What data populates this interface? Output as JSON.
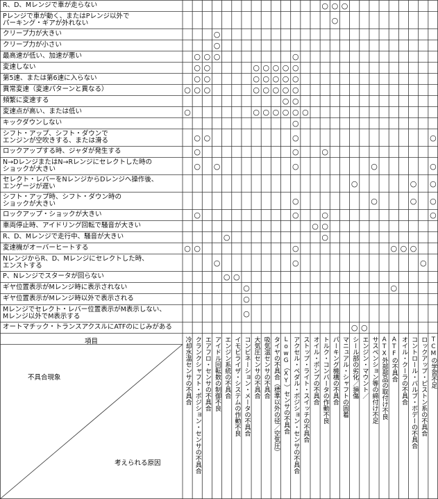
{
  "header": {
    "item": "項目",
    "symptom": "不具合現象",
    "cause": "考えられる原因",
    "columns": [
      "冷却水温センサの不具合",
      "クランクシャフト・ポジション・センサの不具合",
      "エアフロ・センサの不具合",
      "アイドル回転数の制御不良",
      "エンジン系統の不具合",
      "イモビライザ・システムの作動不良",
      "コンビネーション・メータの不具合",
      "大気圧センサの不具合",
      "吸気温センサの不具合",
      "タイヤの不具合（標準以外の径／空気圧）",
      "LowG（XY）センサの不具合",
      "アクセル・ペダル・ポジション・センサの不具合",
      "ストップ・ライト・スイッチの不具合",
      "オイル・ポンプの不具合",
      "トルク・コンバータの作動不良",
      "パーキング機構の不具合",
      "マニュアル・シャフトの固着",
      "シール部の劣化／損傷",
      "エンジン・マウント／",
      "サスペンション等の締付け不足",
      "ATX外部部品の取付け不良",
      "ATFの不具合",
      "オイル・クーラの不具合",
      "コントロール・バルブ・ボデーの不具合",
      "ロックアップ・ピストン系の不具合",
      "TCMの学習不足"
    ]
  },
  "rows": [
    {
      "symptom": "R、D、Mレンジで車が走らない",
      "cells": [
        null,
        null,
        null,
        null,
        null,
        null,
        null,
        null,
        null,
        null,
        null,
        null,
        null,
        null,
        "○",
        "○",
        "○",
        null,
        null,
        null,
        null,
        null,
        null,
        null,
        null,
        null
      ]
    },
    {
      "symptom": "Pレンジで車が動く、またはPレンジ以外で\nパーキング・ギアが外れない",
      "cells": [
        null,
        null,
        null,
        null,
        null,
        null,
        null,
        null,
        null,
        null,
        null,
        null,
        null,
        null,
        null,
        "○",
        null,
        null,
        null,
        null,
        null,
        null,
        null,
        null,
        null,
        null
      ]
    },
    {
      "symptom": "クリープ力が大きい",
      "cells": [
        null,
        null,
        null,
        "○",
        null,
        null,
        null,
        null,
        null,
        null,
        null,
        null,
        null,
        null,
        null,
        null,
        null,
        null,
        null,
        null,
        null,
        null,
        null,
        null,
        null,
        null
      ]
    },
    {
      "symptom": "クリープ力が小さい",
      "cells": [
        null,
        null,
        null,
        "○",
        null,
        null,
        null,
        null,
        null,
        null,
        null,
        null,
        null,
        null,
        null,
        null,
        null,
        null,
        null,
        null,
        null,
        null,
        null,
        null,
        null,
        null
      ]
    },
    {
      "symptom": "最高速が低い、加速が悪い",
      "cells": [
        null,
        "○",
        "○",
        "○",
        null,
        null,
        null,
        null,
        null,
        null,
        null,
        "○",
        null,
        null,
        null,
        null,
        null,
        null,
        null,
        null,
        null,
        null,
        null,
        null,
        null,
        null
      ]
    },
    {
      "symptom": "変速しない",
      "cells": [
        null,
        "○",
        "○",
        null,
        null,
        null,
        null,
        "○",
        "○",
        "○",
        "○",
        "○",
        null,
        null,
        null,
        null,
        null,
        null,
        null,
        null,
        null,
        null,
        null,
        null,
        null,
        null
      ]
    },
    {
      "symptom": "第5速、または第6速に入らない",
      "cells": [
        null,
        "○",
        "○",
        null,
        null,
        null,
        null,
        "○",
        "○",
        "○",
        "○",
        "○",
        null,
        null,
        null,
        null,
        null,
        null,
        null,
        null,
        null,
        null,
        null,
        null,
        null,
        null
      ]
    },
    {
      "symptom": "異常変速（変速パターンと異なる）",
      "cells": [
        "○",
        "○",
        "○",
        null,
        null,
        null,
        null,
        "○",
        "○",
        "○",
        "○",
        "○",
        null,
        null,
        null,
        null,
        null,
        null,
        null,
        null,
        null,
        null,
        null,
        null,
        null,
        null
      ]
    },
    {
      "symptom": "頻繁に変速する",
      "cells": [
        null,
        null,
        null,
        null,
        null,
        null,
        null,
        null,
        null,
        null,
        "○",
        "○",
        null,
        null,
        null,
        null,
        null,
        null,
        null,
        null,
        null,
        null,
        null,
        null,
        null,
        null
      ]
    },
    {
      "symptom": "変速点が高い、または低い",
      "cells": [
        "○",
        null,
        null,
        null,
        null,
        null,
        null,
        "○",
        "○",
        "○",
        "○",
        "○",
        "○",
        null,
        null,
        null,
        null,
        null,
        null,
        null,
        null,
        null,
        null,
        null,
        null,
        null
      ]
    },
    {
      "symptom": "キックダウンしない",
      "cells": [
        null,
        null,
        null,
        null,
        null,
        null,
        null,
        null,
        null,
        null,
        null,
        "○",
        null,
        null,
        null,
        null,
        null,
        null,
        null,
        null,
        null,
        null,
        null,
        null,
        null,
        null
      ]
    },
    {
      "symptom": "シフト・アップ、シフト・ダウンで\nエンジンが空吹きする、または滑る",
      "cells": [
        null,
        "○",
        "○",
        null,
        null,
        null,
        null,
        null,
        null,
        null,
        null,
        "○",
        null,
        null,
        null,
        null,
        null,
        null,
        null,
        null,
        null,
        null,
        null,
        null,
        null,
        "○"
      ]
    },
    {
      "symptom": "ロックアップする時、ジャダが発生する",
      "cells": [
        null,
        "○",
        null,
        null,
        null,
        null,
        null,
        null,
        null,
        null,
        null,
        "○",
        null,
        null,
        "○",
        null,
        null,
        null,
        null,
        null,
        null,
        null,
        null,
        null,
        null,
        null
      ]
    },
    {
      "symptom": "N→DレンジまたはN→Rレンジにセレクトした時の\nショックが大きい",
      "cells": [
        null,
        "○",
        null,
        "○",
        null,
        null,
        null,
        null,
        null,
        null,
        null,
        "○",
        null,
        null,
        null,
        null,
        null,
        null,
        null,
        "○",
        null,
        null,
        null,
        null,
        null,
        "○"
      ]
    },
    {
      "symptom": "セレクト・レバーをNレンジからDレンジへ操作後、\nエンゲージが遅い",
      "cells": [
        null,
        null,
        null,
        null,
        null,
        null,
        null,
        null,
        null,
        null,
        null,
        null,
        null,
        null,
        null,
        null,
        null,
        "○",
        null,
        null,
        null,
        null,
        null,
        "○",
        null,
        "○"
      ]
    },
    {
      "symptom": "シフト・アップ時、シフト・ダウン時の\nショックが大きい",
      "cells": [
        null,
        null,
        null,
        null,
        null,
        null,
        null,
        null,
        null,
        null,
        null,
        "○",
        null,
        null,
        null,
        null,
        null,
        null,
        null,
        "○",
        null,
        null,
        null,
        "○",
        null,
        "○"
      ]
    },
    {
      "symptom": "ロックアップ・ショックが大きい",
      "cells": [
        null,
        "○",
        null,
        null,
        null,
        null,
        null,
        null,
        null,
        null,
        null,
        "○",
        null,
        null,
        "○",
        null,
        null,
        null,
        null,
        null,
        null,
        null,
        null,
        null,
        null,
        "○"
      ]
    },
    {
      "symptom": "車両停止時、アイドリング回転で騒音が大きい",
      "cells": [
        null,
        null,
        null,
        null,
        null,
        null,
        null,
        null,
        null,
        null,
        null,
        null,
        null,
        "○",
        "○",
        null,
        null,
        null,
        null,
        null,
        null,
        null,
        null,
        null,
        null,
        null
      ]
    },
    {
      "symptom": "R、D、Mレンジで走行中、騒音が大きい",
      "cells": [
        null,
        null,
        null,
        null,
        "○",
        null,
        null,
        null,
        null,
        null,
        null,
        null,
        null,
        null,
        "○",
        null,
        null,
        null,
        null,
        null,
        null,
        null,
        null,
        null,
        null,
        null
      ]
    },
    {
      "symptom": "変速機がオーバーヒートする",
      "cells": [
        "○",
        "○",
        null,
        null,
        null,
        null,
        null,
        null,
        null,
        null,
        null,
        "○",
        null,
        null,
        null,
        null,
        null,
        null,
        null,
        null,
        null,
        "○",
        "○",
        "○",
        null,
        null
      ]
    },
    {
      "symptom": "NレンジからR、D、Mレンジにセレクトした時、\nエンストする",
      "cells": [
        null,
        null,
        null,
        "○",
        null,
        null,
        null,
        null,
        null,
        null,
        null,
        "○",
        null,
        null,
        null,
        null,
        null,
        null,
        null,
        null,
        null,
        null,
        null,
        null,
        "○",
        null
      ]
    },
    {
      "symptom": "P、Nレンジでスタータが回らない",
      "cells": [
        null,
        null,
        null,
        null,
        "○",
        "○",
        null,
        null,
        null,
        null,
        null,
        null,
        null,
        null,
        null,
        null,
        null,
        null,
        null,
        null,
        null,
        null,
        null,
        null,
        null,
        null
      ]
    },
    {
      "symptom": "ギヤ位置表示がMレンジ時に表示されない",
      "cells": [
        null,
        null,
        null,
        null,
        null,
        null,
        "○",
        null,
        null,
        null,
        null,
        null,
        null,
        null,
        null,
        null,
        null,
        null,
        null,
        null,
        null,
        "○",
        null,
        null,
        null,
        null
      ]
    },
    {
      "symptom": "ギヤ位置表示がMレンジ時以外で表示される",
      "cells": [
        null,
        null,
        null,
        null,
        null,
        null,
        "○",
        null,
        null,
        null,
        null,
        null,
        null,
        null,
        null,
        null,
        null,
        null,
        null,
        null,
        null,
        null,
        null,
        null,
        null,
        null
      ]
    },
    {
      "symptom": "Mレンジでセレクト・レバー位置表示がM表示しない、\nMレンジ以外でM表示する",
      "cells": [
        null,
        null,
        null,
        null,
        null,
        null,
        "○",
        null,
        null,
        null,
        null,
        null,
        null,
        null,
        null,
        null,
        null,
        null,
        null,
        null,
        null,
        null,
        null,
        null,
        null,
        null
      ]
    },
    {
      "symptom": "オートマチック・トランスアクスルにATFのにじみがある",
      "cells": [
        null,
        null,
        null,
        null,
        null,
        null,
        null,
        null,
        null,
        null,
        null,
        null,
        null,
        null,
        null,
        null,
        null,
        "○",
        "○",
        null,
        null,
        null,
        null,
        null,
        null,
        null
      ]
    }
  ]
}
